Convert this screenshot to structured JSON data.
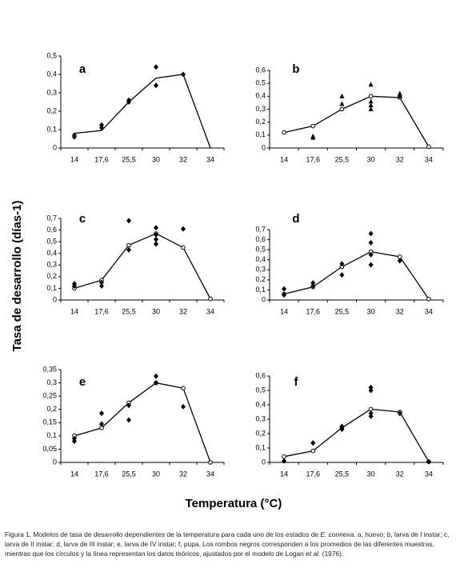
{
  "ylabel": "Tasa de desarrollo (días-1)",
  "xlabel": "Temperatura (°C)",
  "caption": [
    "Figura 1. Modelos de tasa de desarrollo dependientes de la temperatura para cada uno de los estados de ",
    "E. connexa",
    ". a, huevo; b, larva de I instar; c, larva de II instar; d, larva de III instar; e, larva de IV instar; f, pupa. Los rombos negros corresponden a los promedios de las diferentes muestras, mientras que los círculos y la línea representan los datos teóricos, ajustados por el modelo de Logan ",
    "et al.",
    " (1976)."
  ],
  "chart_data": [
    {
      "type": "line",
      "title": "a",
      "categories": [
        "14",
        "17,6",
        "25,5",
        "30",
        "32",
        "34"
      ],
      "ylim": [
        0,
        0.5
      ],
      "yticks": [
        0,
        {
          "value": 0.1,
          "label": "0,1"
        },
        {
          "value": 0.2,
          "label": "0,2"
        },
        {
          "value": 0.3,
          "label": "0,3"
        },
        {
          "value": 0.4,
          "label": "0,4"
        },
        {
          "value": 0.5,
          "label": "0,5"
        }
      ],
      "series": [
        {
          "color": "#000",
          "marker": "none",
          "line": true,
          "values": [
            0.08,
            0.095,
            0.25,
            0.38,
            0.4,
            0
          ]
        },
        {
          "color": "#000",
          "marker": "diamond",
          "values": [
            0.07,
            0.125,
            0.26,
            0.44,
            0.4,
            null
          ]
        },
        {
          "color": "#000",
          "marker": "diamond",
          "values": [
            0.06,
            0.11,
            0.25,
            0.34,
            null,
            null
          ]
        }
      ]
    },
    {
      "type": "line",
      "title": "b",
      "categories": [
        "14",
        "17,6",
        "25,5",
        "30",
        "32",
        "34"
      ],
      "ylim": [
        0,
        0.6
      ],
      "yticks": [
        0,
        {
          "value": 0.1,
          "label": "0,1"
        },
        {
          "value": 0.2,
          "label": "0,2"
        },
        {
          "value": 0.3,
          "label": "0,3"
        },
        {
          "value": 0.4,
          "label": "0,4"
        },
        {
          "value": 0.5,
          "label": "0,5"
        },
        {
          "value": 0.6,
          "label": "0,6"
        }
      ],
      "series": [
        {
          "color": "#000",
          "marker": "circle",
          "line": true,
          "values": [
            0.12,
            0.17,
            0.3,
            0.4,
            0.39,
            0.01
          ]
        },
        {
          "color": "#000",
          "marker": "triangle",
          "values": [
            null,
            0.09,
            0.4,
            0.49,
            0.42,
            null
          ]
        },
        {
          "color": "#000",
          "marker": "triangle",
          "values": [
            null,
            0.08,
            0.34,
            0.36,
            0.4,
            null
          ]
        },
        {
          "color": "#000",
          "marker": "triangle",
          "values": [
            null,
            null,
            null,
            0.33,
            null,
            null
          ]
        },
        {
          "color": "#000",
          "marker": "triangle",
          "values": [
            null,
            null,
            null,
            0.3,
            null,
            null
          ]
        }
      ]
    },
    {
      "type": "line",
      "title": "c",
      "categories": [
        "14",
        "17,6",
        "25,5",
        "30",
        "32",
        "34"
      ],
      "ylim": [
        0,
        0.7
      ],
      "yticks": [
        0,
        {
          "value": 0.1,
          "label": "0,1"
        },
        {
          "value": 0.2,
          "label": "0,2"
        },
        {
          "value": 0.3,
          "label": "0,3"
        },
        {
          "value": 0.4,
          "label": "0,4"
        },
        {
          "value": 0.5,
          "label": "0,5"
        },
        {
          "value": 0.6,
          "label": "0,6"
        },
        {
          "value": 0.7,
          "label": "0,7"
        }
      ],
      "series": [
        {
          "color": "#000",
          "marker": "circle",
          "line": true,
          "values": [
            0.1,
            0.17,
            0.47,
            0.57,
            0.45,
            0.01
          ]
        },
        {
          "color": "#000",
          "marker": "diamond",
          "values": [
            0.14,
            0.15,
            0.68,
            0.62,
            0.61,
            null
          ]
        },
        {
          "color": "#000",
          "marker": "diamond",
          "values": [
            0.12,
            0.12,
            0.43,
            0.56,
            null,
            null
          ]
        },
        {
          "color": "#000",
          "marker": "diamond",
          "values": [
            null,
            null,
            null,
            0.52,
            null,
            null
          ]
        },
        {
          "color": "#000",
          "marker": "diamond",
          "values": [
            null,
            null,
            null,
            0.48,
            null,
            null
          ]
        }
      ]
    },
    {
      "type": "line",
      "title": "d",
      "categories": [
        "14",
        "17,6",
        "25,5",
        "30",
        "32",
        "34"
      ],
      "ylim": [
        0,
        0.7
      ],
      "yticks": [
        0,
        {
          "value": 0.1,
          "label": "0,1"
        },
        {
          "value": 0.2,
          "label": "0,2"
        },
        {
          "value": 0.3,
          "label": "0,3"
        },
        {
          "value": 0.4,
          "label": "0,4"
        },
        {
          "value": 0.5,
          "label": "0,5"
        },
        {
          "value": 0.6,
          "label": "0,6"
        },
        {
          "value": 0.7,
          "label": "0,7"
        }
      ],
      "series": [
        {
          "color": "#000",
          "marker": "circle",
          "line": true,
          "values": [
            0.06,
            0.13,
            0.33,
            0.48,
            0.43,
            0.01
          ]
        },
        {
          "color": "#000",
          "marker": "diamond",
          "values": [
            0.11,
            0.17,
            0.36,
            0.66,
            0.39,
            null
          ]
        },
        {
          "color": "#000",
          "marker": "diamond",
          "values": [
            0.05,
            0.14,
            0.25,
            0.57,
            null,
            null
          ]
        },
        {
          "color": "#000",
          "marker": "diamond",
          "values": [
            null,
            null,
            null,
            0.45,
            null,
            null
          ]
        },
        {
          "color": "#000",
          "marker": "diamond",
          "values": [
            null,
            null,
            null,
            0.35,
            null,
            null
          ]
        }
      ]
    },
    {
      "type": "line",
      "title": "e",
      "categories": [
        "14",
        "17,6",
        "25,5",
        "30",
        "32",
        "34"
      ],
      "ylim": [
        0,
        0.35
      ],
      "yticks": [
        0,
        {
          "value": 0.05,
          "label": "0,05"
        },
        {
          "value": 0.1,
          "label": "0,1"
        },
        {
          "value": 0.15,
          "label": "0,15"
        },
        {
          "value": 0.2,
          "label": "0,2"
        },
        {
          "value": 0.25,
          "label": "0,25"
        },
        {
          "value": 0.3,
          "label": "0,3"
        },
        {
          "value": 0.35,
          "label": "0,35"
        }
      ],
      "series": [
        {
          "color": "#000",
          "marker": "circle",
          "line": true,
          "values": [
            0.1,
            0.13,
            0.225,
            0.3,
            0.28,
            0
          ]
        },
        {
          "color": "#000",
          "marker": "diamond",
          "values": [
            0.09,
            0.185,
            0.215,
            0.325,
            0.21,
            null
          ]
        },
        {
          "color": "#000",
          "marker": "diamond",
          "values": [
            0.08,
            0.145,
            0.16,
            0.3,
            null,
            null
          ]
        }
      ]
    },
    {
      "type": "line",
      "title": "f",
      "categories": [
        "14",
        "17,6",
        "25,5",
        "30",
        "32",
        "34"
      ],
      "ylim": [
        0,
        0.6
      ],
      "yticks": [
        0,
        {
          "value": 0.1,
          "label": "0,1"
        },
        {
          "value": 0.2,
          "label": "0,2"
        },
        {
          "value": 0.3,
          "label": "0,3"
        },
        {
          "value": 0.4,
          "label": "0,4"
        },
        {
          "value": 0.5,
          "label": "0,5"
        },
        {
          "value": 0.6,
          "label": "0,6"
        }
      ],
      "series": [
        {
          "color": "#000",
          "marker": "circle",
          "line": true,
          "values": [
            0.04,
            0.08,
            0.24,
            0.37,
            0.35,
            0.005
          ]
        },
        {
          "color": "#000",
          "marker": "diamond",
          "values": [
            0.01,
            0.135,
            0.25,
            0.52,
            0.34,
            0.005
          ]
        },
        {
          "color": "#000",
          "marker": "diamond",
          "values": [
            null,
            null,
            0.23,
            0.5,
            null,
            null
          ]
        },
        {
          "color": "#000",
          "marker": "diamond",
          "values": [
            null,
            null,
            null,
            0.34,
            null,
            null
          ]
        },
        {
          "color": "#000",
          "marker": "diamond",
          "values": [
            null,
            null,
            null,
            0.32,
            null,
            null
          ]
        }
      ]
    }
  ]
}
